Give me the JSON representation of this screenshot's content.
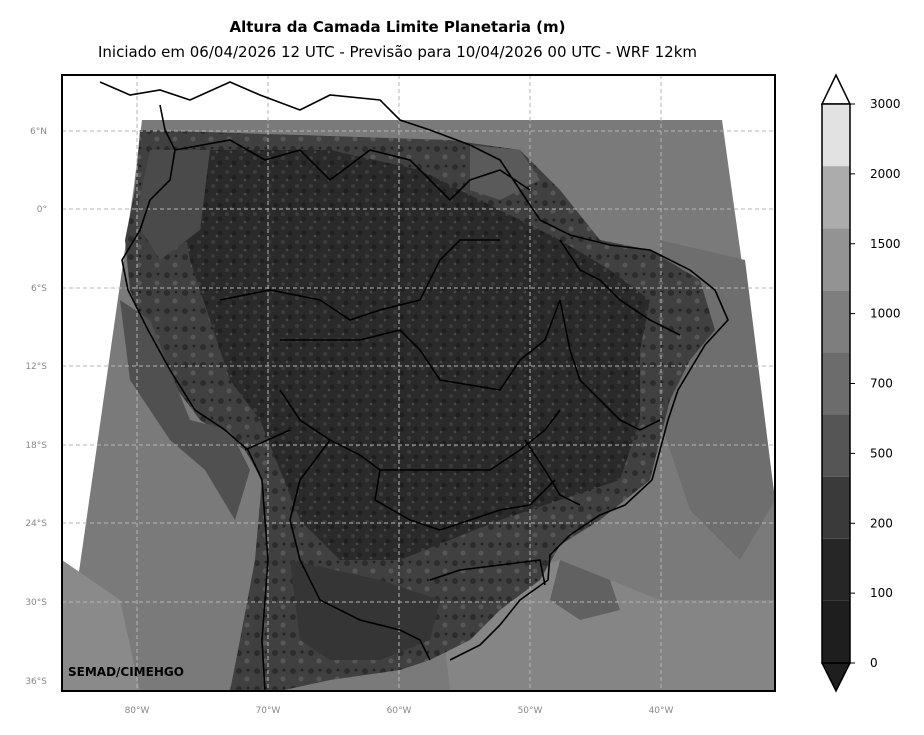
{
  "header": {
    "title": "Altura da Camada Limite Planetaria (m)",
    "subtitle": "Iniciado em 06/04/2026 12 UTC - Previsão para 10/04/2026 00 UTC - WRF 12km"
  },
  "map": {
    "lat_ticks": [
      "6°N",
      "0°",
      "6°S",
      "12°S",
      "18°S",
      "24°S",
      "30°S",
      "36°S"
    ],
    "lon_ticks": [
      "80°W",
      "70°W",
      "60°W",
      "50°W",
      "40°W"
    ],
    "credit": "SEMAD/CIMEHGO",
    "gridlines": true,
    "borders": true
  },
  "colorbar": {
    "labels": [
      "0",
      "100",
      "200",
      "500",
      "700",
      "1000",
      "1500",
      "2000",
      "3000"
    ],
    "colors": [
      "#1e1e1e",
      "#262626",
      "#3a3a3a",
      "#555555",
      "#6c6c6c",
      "#7e7e7e",
      "#939393",
      "#acacac",
      "#e2e2e2"
    ],
    "extend": "both"
  }
}
